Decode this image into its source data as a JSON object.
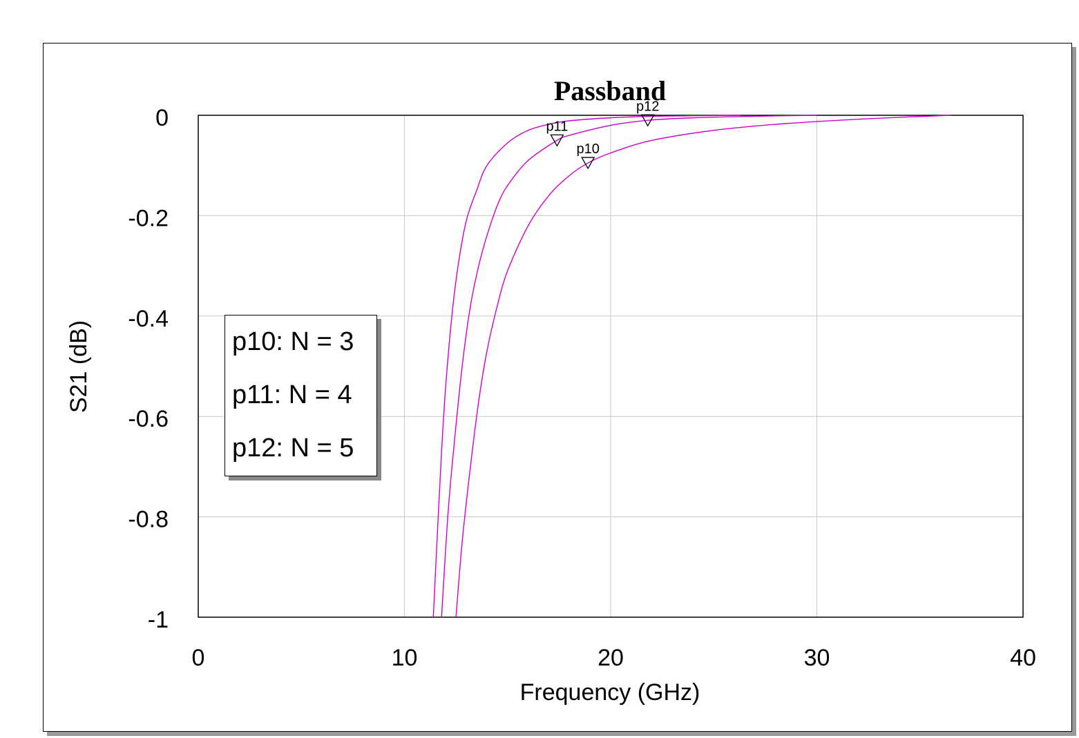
{
  "chart_data": {
    "type": "line",
    "title": "Passband",
    "xlabel": "Frequency (GHz)",
    "ylabel": "S21 (dB)",
    "xlim": [
      0,
      40
    ],
    "ylim": [
      -1,
      0
    ],
    "xticks": [
      0,
      10,
      20,
      30,
      40
    ],
    "xtick_labels": [
      "0",
      "10",
      "20",
      "30",
      "40"
    ],
    "yticks": [
      0,
      -0.2,
      -0.4,
      -0.6,
      -0.8,
      -1
    ],
    "ytick_labels": [
      "0",
      "-0.2",
      "-0.4",
      "-0.6",
      "-0.8",
      "-1"
    ],
    "grid": true,
    "line_color": "#cc00cc",
    "series": [
      {
        "x": [
          11.4,
          11.6,
          11.8,
          12.0,
          12.3,
          12.6,
          13.0,
          13.5,
          14.0,
          15.0,
          16.0,
          17.0,
          18.0,
          20.0,
          22.0,
          24.0,
          26.3
        ],
        "y": [
          -1.0,
          -0.83,
          -0.67,
          -0.54,
          -0.4,
          -0.3,
          -0.21,
          -0.15,
          -0.1,
          -0.055,
          -0.03,
          -0.018,
          -0.011,
          -0.005,
          -0.002,
          -0.001,
          0
        ]
      },
      {
        "x": [
          11.8,
          12.1,
          12.4,
          12.8,
          13.2,
          13.6,
          14.0,
          14.5,
          15.0,
          16.0,
          17.4,
          18.0,
          20.0,
          21.8,
          24.0,
          27.0,
          30.0
        ],
        "y": [
          -1.0,
          -0.8,
          -0.66,
          -0.5,
          -0.38,
          -0.3,
          -0.24,
          -0.18,
          -0.14,
          -0.09,
          -0.05,
          -0.04,
          -0.02,
          -0.01,
          -0.005,
          -0.002,
          0
        ]
      },
      {
        "x": [
          12.5,
          12.8,
          13.2,
          13.6,
          14.0,
          14.5,
          15.0,
          16.0,
          17.0,
          18.0,
          18.9,
          20.0,
          22.0,
          25.0,
          28.0,
          31.0,
          34.0,
          36.5
        ],
        "y": [
          -1.0,
          -0.85,
          -0.7,
          -0.57,
          -0.47,
          -0.38,
          -0.31,
          -0.22,
          -0.16,
          -0.12,
          -0.095,
          -0.075,
          -0.05,
          -0.03,
          -0.018,
          -0.01,
          -0.004,
          0
        ]
      }
    ],
    "markers": [
      {
        "label": "p10",
        "x": 18.9,
        "y": -0.095
      },
      {
        "label": "p11",
        "x": 17.4,
        "y": -0.05
      },
      {
        "label": "p12",
        "x": 21.8,
        "y": -0.01
      }
    ]
  },
  "legend": {
    "rows": [
      "p10: N = 3",
      "p11: N = 4",
      "p12: N = 5"
    ]
  }
}
